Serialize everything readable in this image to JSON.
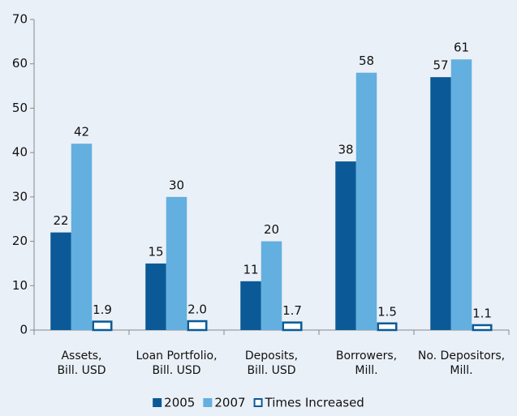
{
  "chart_data": {
    "type": "bar",
    "categories": [
      [
        "Assets,",
        "Bill. USD"
      ],
      [
        "Loan Portfolio,",
        "Bill. USD"
      ],
      [
        "Deposits,",
        "Bill. USD"
      ],
      [
        "Borrowers,",
        "Mill."
      ],
      [
        "No. Depositors,",
        "Mill."
      ]
    ],
    "series": [
      {
        "name": "2005",
        "color": "#0b5a97",
        "values": [
          22,
          15,
          11,
          38,
          57
        ]
      },
      {
        "name": "2007",
        "color": "#63afdf",
        "values": [
          42,
          30,
          20,
          58,
          61
        ]
      },
      {
        "name": "Times Increased",
        "color": "#0b5a97",
        "outline": true,
        "values": [
          1.9,
          2.0,
          1.7,
          1.5,
          1.1
        ],
        "value_labels": [
          "1.9",
          "2.0",
          "1.7",
          "1.5",
          "1.1"
        ]
      }
    ],
    "ylim": [
      0,
      70
    ],
    "yticks": [
      0,
      10,
      20,
      30,
      40,
      50,
      60,
      70
    ],
    "grid": false,
    "legend": "bottom"
  }
}
